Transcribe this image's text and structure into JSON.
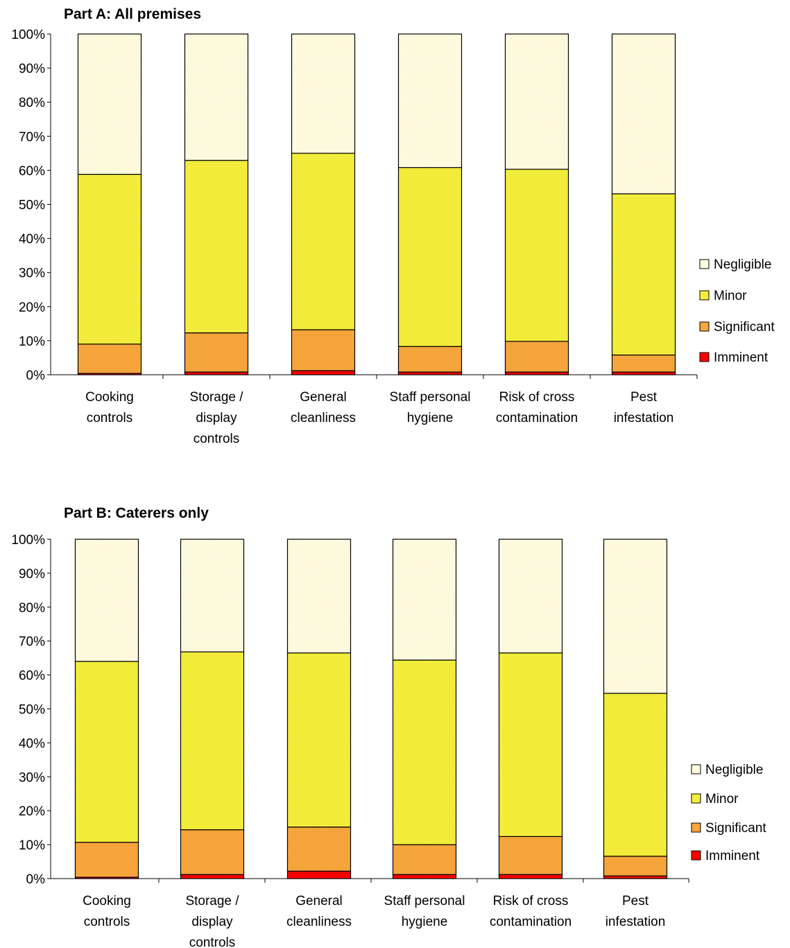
{
  "chart_data": [
    {
      "type": "bar",
      "stacked": true,
      "percent": true,
      "title": "Part A:  All premises",
      "categories": [
        [
          "Cooking",
          "controls"
        ],
        [
          "Storage /",
          "display",
          "controls"
        ],
        [
          "General",
          "cleanliness"
        ],
        [
          "Staff personal",
          "hygiene"
        ],
        [
          "Risk of cross",
          "contamination"
        ],
        [
          "Pest",
          "infestation"
        ]
      ],
      "series": [
        {
          "name": "Imminent",
          "color": "#ff0000",
          "values": [
            0.4,
            0.8,
            1.2,
            0.8,
            0.8,
            0.8
          ]
        },
        {
          "name": "Significant",
          "color": "#f7a63e",
          "values": [
            8.6,
            11.5,
            12.0,
            7.5,
            9.0,
            5.0
          ]
        },
        {
          "name": "Minor",
          "color": "#f5ef3c",
          "values": [
            49.8,
            50.6,
            51.8,
            52.5,
            50.5,
            47.3
          ]
        },
        {
          "name": "Negligible",
          "color": "#fffbe0",
          "values": [
            41.2,
            37.1,
            35.0,
            39.2,
            39.7,
            46.9
          ]
        }
      ],
      "ylim": [
        0,
        100
      ],
      "yticks": [
        "0%",
        "10%",
        "20%",
        "30%",
        "40%",
        "50%",
        "60%",
        "70%",
        "80%",
        "90%",
        "100%"
      ],
      "legend_position": "right"
    },
    {
      "type": "bar",
      "stacked": true,
      "percent": true,
      "title": "Part B:  Caterers only",
      "categories": [
        [
          "Cooking",
          "controls"
        ],
        [
          "Storage /",
          "display",
          "controls"
        ],
        [
          "General",
          "cleanliness"
        ],
        [
          "Staff personal",
          "hygiene"
        ],
        [
          "Risk of cross",
          "contamination"
        ],
        [
          "Pest",
          "infestation"
        ]
      ],
      "series": [
        {
          "name": "Imminent",
          "color": "#ff0000",
          "values": [
            0.4,
            1.2,
            2.2,
            1.2,
            1.2,
            0.8
          ]
        },
        {
          "name": "Significant",
          "color": "#f7a63e",
          "values": [
            10.3,
            13.2,
            13.0,
            8.8,
            11.2,
            5.8
          ]
        },
        {
          "name": "Minor",
          "color": "#f5ef3c",
          "values": [
            53.3,
            52.4,
            51.3,
            54.4,
            54.1,
            48.0
          ]
        },
        {
          "name": "Negligible",
          "color": "#fffbe0",
          "values": [
            36.0,
            33.2,
            33.5,
            35.6,
            33.5,
            45.4
          ]
        }
      ],
      "ylim": [
        0,
        100
      ],
      "yticks": [
        "0%",
        "10%",
        "20%",
        "30%",
        "40%",
        "50%",
        "60%",
        "70%",
        "80%",
        "90%",
        "100%"
      ],
      "legend_position": "right"
    }
  ]
}
